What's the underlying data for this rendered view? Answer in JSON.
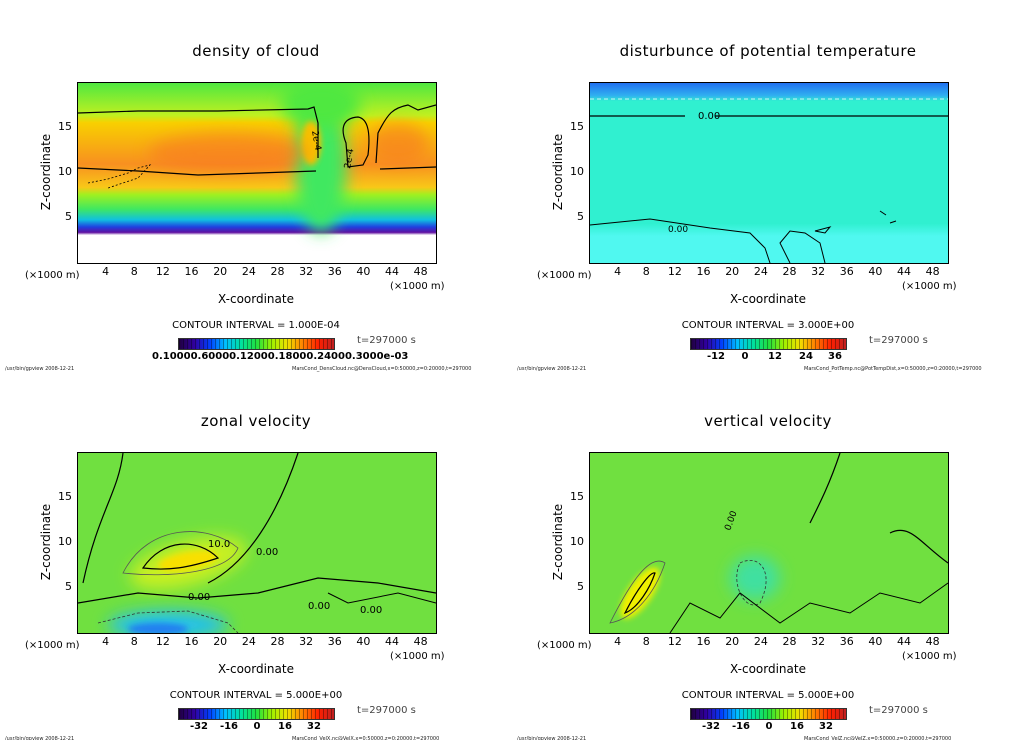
{
  "panels": [
    {
      "id": "cloud",
      "title": "density of cloud",
      "xlabel": "X-coordinate",
      "ylabel": "Z-coordinate",
      "unit": "(×1000 m)",
      "contour_interval": "CONTOUR INTERVAL = 1.000E-04",
      "time": "t=297000 s",
      "colorbar_labels": [
        "0.10000.60000.12000.18000.24000.3000e-03"
      ],
      "contour_labels": [
        "2e-4",
        "2e-4"
      ],
      "footer_left": "/usr/bin/gpview  2008-12-21",
      "footer_right": "MarsCond_DensCloud.nc@DensCloud,x=0:50000,z=0:20000,t=297000"
    },
    {
      "id": "pottemp",
      "title": "disturbunce of potential temperature",
      "xlabel": "X-coordinate",
      "ylabel": "Z-coordinate",
      "unit": "(×1000 m)",
      "contour_interval": "CONTOUR INTERVAL = 3.000E+00",
      "time": "t=297000 s",
      "colorbar_labels": [
        "-12",
        "0",
        "12",
        "24",
        "36"
      ],
      "contour_labels": [
        "0.00",
        "0.00"
      ],
      "footer_left": "/usr/bin/gpview  2008-12-21",
      "footer_right": "MarsCond_PotTemp.nc@PotTempDist,x=0:50000,z=0:20000,t=297000"
    },
    {
      "id": "velx",
      "title": "zonal velocity",
      "xlabel": "X-coordinate",
      "ylabel": "Z-coordinate",
      "unit": "(×1000 m)",
      "contour_interval": "CONTOUR INTERVAL = 5.000E+00",
      "time": "t=297000 s",
      "colorbar_labels": [
        "-32",
        "-16",
        "0",
        "16",
        "32"
      ],
      "contour_labels": [
        "10.0",
        "0.00",
        "0.00",
        "0.00",
        "0.00"
      ],
      "footer_left": "/usr/bin/gpview  2008-12-21",
      "footer_right": "MarsCond_VelX.nc@VelX,x=0:50000,z=0:20000,t=297000"
    },
    {
      "id": "velz",
      "title": "vertical velocity",
      "xlabel": "X-coordinate",
      "ylabel": "Z-coordinate",
      "unit": "(×1000 m)",
      "contour_interval": "CONTOUR INTERVAL = 5.000E+00",
      "time": "t=297000 s",
      "colorbar_labels": [
        "-32",
        "-16",
        "0",
        "16",
        "32"
      ],
      "contour_labels": [
        "0.00"
      ],
      "footer_left": "/usr/bin/gpview  2008-12-21",
      "footer_right": "MarsCond_VelZ.nc@VelZ,x=0:50000,z=0:20000,t=297000"
    }
  ],
  "chart_data": [
    {
      "type": "heatmap",
      "title": "density of cloud",
      "xlabel": "X-coordinate",
      "ylabel": "Z-coordinate",
      "xlim": [
        0,
        50
      ],
      "ylim": [
        0,
        20
      ],
      "xticks": [
        4,
        8,
        12,
        16,
        20,
        24,
        28,
        32,
        36,
        40,
        44,
        48
      ],
      "yticks": [
        5,
        10,
        15
      ],
      "contour_interval": 0.0001,
      "time_s": 297000
    },
    {
      "type": "heatmap",
      "title": "disturbunce of potential temperature",
      "xlabel": "X-coordinate",
      "ylabel": "Z-coordinate",
      "xlim": [
        0,
        50
      ],
      "ylim": [
        0,
        20
      ],
      "xticks": [
        4,
        8,
        12,
        16,
        20,
        24,
        28,
        32,
        36,
        40,
        44,
        48
      ],
      "yticks": [
        5,
        10,
        15
      ],
      "contour_interval": 3.0,
      "colorbar_ticks": [
        -12,
        0,
        12,
        24,
        36
      ],
      "time_s": 297000
    },
    {
      "type": "heatmap",
      "title": "zonal velocity",
      "xlabel": "X-coordinate",
      "ylabel": "Z-coordinate",
      "xlim": [
        0,
        50
      ],
      "ylim": [
        0,
        20
      ],
      "xticks": [
        4,
        8,
        12,
        16,
        20,
        24,
        28,
        32,
        36,
        40,
        44,
        48
      ],
      "yticks": [
        5,
        10,
        15
      ],
      "contour_interval": 5.0,
      "colorbar_ticks": [
        -32,
        -16,
        0,
        16,
        32
      ],
      "time_s": 297000
    },
    {
      "type": "heatmap",
      "title": "vertical velocity",
      "xlabel": "X-coordinate",
      "ylabel": "Z-coordinate",
      "xlim": [
        0,
        50
      ],
      "ylim": [
        0,
        20
      ],
      "xticks": [
        4,
        8,
        12,
        16,
        20,
        24,
        28,
        32,
        36,
        40,
        44,
        48
      ],
      "yticks": [
        5,
        10,
        15
      ],
      "contour_interval": 5.0,
      "colorbar_ticks": [
        -32,
        -16,
        0,
        16,
        32
      ],
      "time_s": 297000
    }
  ]
}
